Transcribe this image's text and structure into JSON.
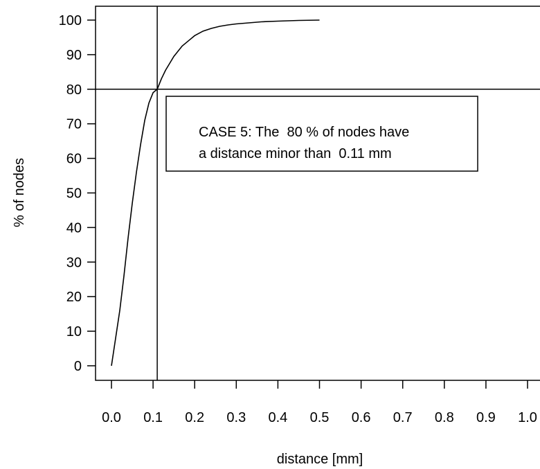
{
  "chart_data": {
    "type": "line",
    "title": "",
    "xlabel": "distance [mm]",
    "ylabel": "% of nodes",
    "xlim": [
      0.0,
      1.0
    ],
    "ylim": [
      0,
      100
    ],
    "x_ticks": [
      "0.0",
      "0.1",
      "0.2",
      "0.3",
      "0.4",
      "0.5",
      "0.6",
      "0.7",
      "0.8",
      "0.9",
      "1.0"
    ],
    "y_ticks": [
      "0",
      "10",
      "20",
      "30",
      "40",
      "50",
      "60",
      "70",
      "80",
      "90",
      "100"
    ],
    "grid": false,
    "reference_lines": {
      "vertical_x": 0.11,
      "horizontal_y": 80
    },
    "series": [
      {
        "x": [
          0.0,
          0.01,
          0.02,
          0.03,
          0.04,
          0.05,
          0.06,
          0.07,
          0.08,
          0.09,
          0.1,
          0.11,
          0.12,
          0.13,
          0.14,
          0.15,
          0.16,
          0.17,
          0.18,
          0.19,
          0.2,
          0.22,
          0.24,
          0.26,
          0.28,
          0.3,
          0.33,
          0.36,
          0.4,
          0.45,
          0.5
        ],
        "y": [
          0,
          8,
          16,
          26,
          37,
          47,
          56,
          64,
          71,
          76,
          79,
          80,
          83,
          85.5,
          87.5,
          89.5,
          91,
          92.5,
          93.5,
          94.5,
          95.5,
          96.8,
          97.6,
          98.2,
          98.6,
          98.9,
          99.2,
          99.5,
          99.7,
          99.9,
          100
        ]
      }
    ],
    "annotation": {
      "line1": "CASE 5: The  80 % of nodes have",
      "line2": "a distance minor than  0.11 mm"
    }
  }
}
